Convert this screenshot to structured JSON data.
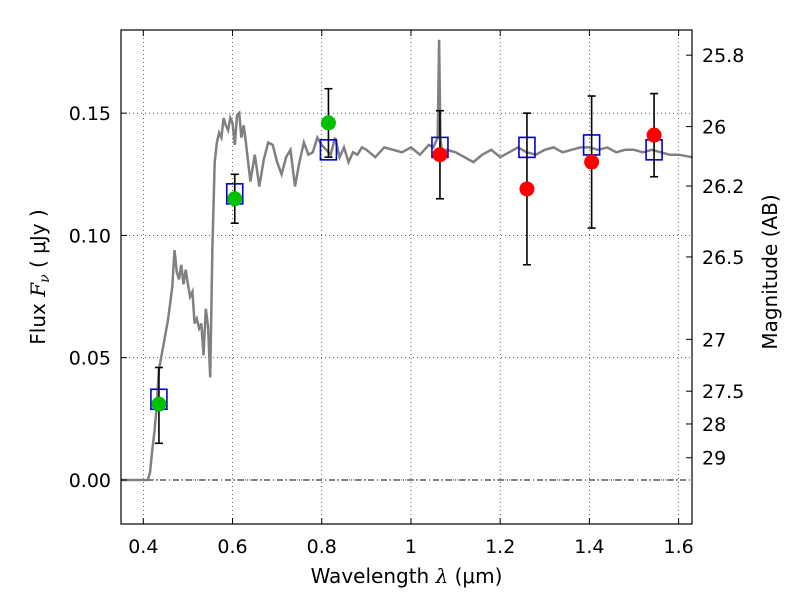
{
  "chart_data": {
    "type": "scatter",
    "xlabel": {
      "text": "Wavelength",
      "symbol": "λ",
      "unit": "(μm)"
    },
    "ylabel": {
      "text": "Flux",
      "symbol": "F",
      "subscript": "ν",
      "unit": "( μJy )"
    },
    "y2label": "Magnitude (AB)",
    "xlim": [
      0.35,
      1.63
    ],
    "ylim": [
      -0.018,
      0.184
    ],
    "x_ticks": [
      0.4,
      0.6,
      0.8,
      1.0,
      1.2,
      1.4,
      1.6
    ],
    "x_tick_labels": [
      "0.4",
      "0.6",
      "0.8",
      "1",
      "1.2",
      "1.4",
      "1.6"
    ],
    "y_ticks": [
      0.0,
      0.05,
      0.1,
      0.15
    ],
    "y_tick_labels": [
      "0.00",
      "0.05",
      "0.10",
      "0.15"
    ],
    "y2_ticks": [
      {
        "label": "25.8",
        "flux": 0.1737
      },
      {
        "label": "26",
        "flux": 0.1445
      },
      {
        "label": "26.2",
        "flux": 0.1202
      },
      {
        "label": "26.5",
        "flux": 0.0912
      },
      {
        "label": "27",
        "flux": 0.0575
      },
      {
        "label": "27.5",
        "flux": 0.0363
      },
      {
        "label": "28",
        "flux": 0.0229
      },
      {
        "label": "29",
        "flux": 0.0091
      }
    ],
    "grid": true,
    "zero_line": true,
    "series": [
      {
        "kind": "spectrum-line",
        "color": "#808080",
        "x": [
          0.35,
          0.41,
          0.415,
          0.42,
          0.425,
          0.43,
          0.435,
          0.44,
          0.445,
          0.45,
          0.455,
          0.46,
          0.465,
          0.47,
          0.475,
          0.48,
          0.485,
          0.49,
          0.495,
          0.5,
          0.505,
          0.51,
          0.515,
          0.52,
          0.525,
          0.53,
          0.535,
          0.54,
          0.545,
          0.55,
          0.555,
          0.56,
          0.565,
          0.57,
          0.575,
          0.58,
          0.585,
          0.59,
          0.595,
          0.6,
          0.605,
          0.61,
          0.615,
          0.62,
          0.625,
          0.63,
          0.64,
          0.65,
          0.66,
          0.67,
          0.68,
          0.69,
          0.7,
          0.71,
          0.72,
          0.73,
          0.74,
          0.75,
          0.76,
          0.77,
          0.78,
          0.79,
          0.8,
          0.81,
          0.82,
          0.83,
          0.84,
          0.85,
          0.86,
          0.87,
          0.88,
          0.89,
          0.9,
          0.92,
          0.94,
          0.96,
          0.98,
          1.0,
          1.02,
          1.04,
          1.05,
          1.06,
          1.063,
          1.066,
          1.07,
          1.08,
          1.1,
          1.12,
          1.14,
          1.16,
          1.18,
          1.2,
          1.22,
          1.24,
          1.26,
          1.28,
          1.3,
          1.32,
          1.34,
          1.36,
          1.38,
          1.4,
          1.42,
          1.44,
          1.46,
          1.48,
          1.5,
          1.52,
          1.54,
          1.56,
          1.58,
          1.6,
          1.63
        ],
        "y": [
          0.0,
          0.0,
          0.003,
          0.012,
          0.02,
          0.03,
          0.045,
          0.05,
          0.055,
          0.06,
          0.065,
          0.072,
          0.079,
          0.094,
          0.085,
          0.082,
          0.088,
          0.08,
          0.086,
          0.08,
          0.075,
          0.077,
          0.064,
          0.066,
          0.062,
          0.064,
          0.051,
          0.07,
          0.063,
          0.042,
          0.095,
          0.13,
          0.138,
          0.142,
          0.14,
          0.148,
          0.145,
          0.143,
          0.148,
          0.146,
          0.137,
          0.149,
          0.15,
          0.14,
          0.145,
          0.138,
          0.122,
          0.133,
          0.12,
          0.131,
          0.138,
          0.137,
          0.13,
          0.125,
          0.132,
          0.135,
          0.12,
          0.13,
          0.138,
          0.133,
          0.134,
          0.14,
          0.137,
          0.135,
          0.133,
          0.14,
          0.132,
          0.136,
          0.13,
          0.134,
          0.133,
          0.136,
          0.135,
          0.132,
          0.136,
          0.135,
          0.134,
          0.136,
          0.133,
          0.137,
          0.136,
          0.14,
          0.18,
          0.14,
          0.133,
          0.135,
          0.134,
          0.132,
          0.13,
          0.133,
          0.135,
          0.132,
          0.134,
          0.136,
          0.134,
          0.133,
          0.135,
          0.136,
          0.134,
          0.135,
          0.136,
          0.136,
          0.135,
          0.136,
          0.134,
          0.135,
          0.135,
          0.134,
          0.135,
          0.134,
          0.133,
          0.133,
          0.132
        ]
      },
      {
        "kind": "model-photometry",
        "marker": "open-square",
        "color": "#0000cc",
        "x": [
          0.435,
          0.605,
          0.815,
          1.065,
          1.26,
          1.405,
          1.545
        ],
        "y": [
          0.033,
          0.117,
          0.135,
          0.136,
          0.136,
          0.137,
          0.135
        ]
      },
      {
        "kind": "observed-photometry",
        "marker": "filled-circle",
        "color": "#00c000",
        "x": [
          0.435,
          0.605,
          0.815
        ],
        "y": [
          0.031,
          0.115,
          0.146
        ],
        "yerr_low": [
          0.016,
          0.01,
          0.014
        ],
        "yerr_high": [
          0.015,
          0.01,
          0.014
        ]
      },
      {
        "kind": "observed-photometry",
        "marker": "filled-circle",
        "color": "#ff0000",
        "x": [
          1.065,
          1.26,
          1.405,
          1.545
        ],
        "y": [
          0.133,
          0.119,
          0.13,
          0.141
        ],
        "yerr_low": [
          0.018,
          0.031,
          0.027,
          0.017
        ],
        "yerr_high": [
          0.018,
          0.031,
          0.027,
          0.017
        ]
      }
    ]
  }
}
